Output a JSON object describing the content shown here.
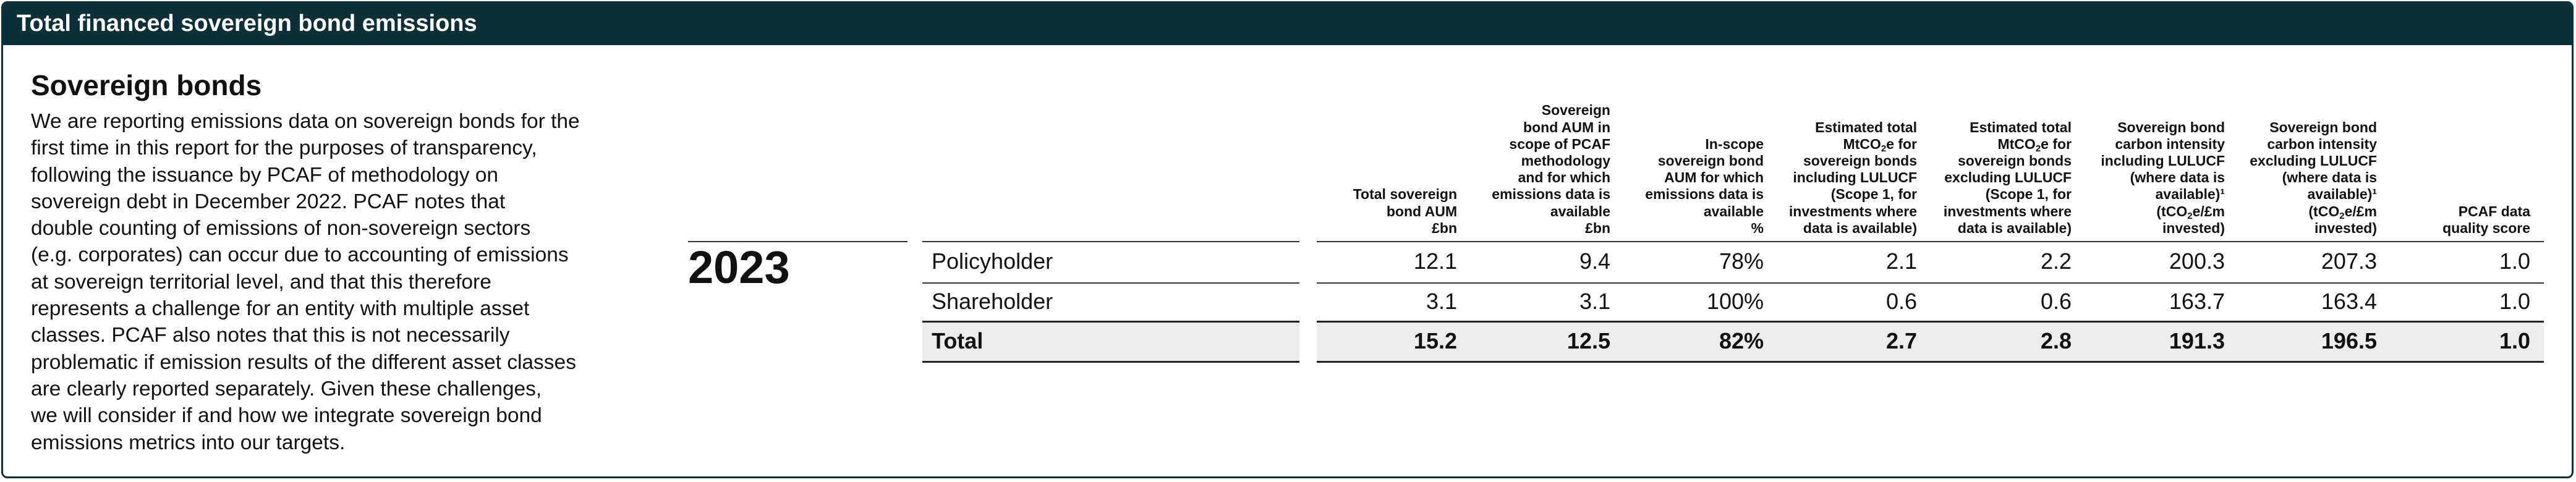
{
  "header": {
    "title": "Total financed sovereign bond emissions"
  },
  "section": {
    "heading": "Sovereign bonds",
    "paragraph_lines": [
      "We are reporting emissions data on sovereign bonds for the",
      "first time in this report for the purposes of transparency,",
      "following the issuance by PCAF of methodology on",
      "sovereign debt in December 2022. PCAF notes that",
      "double counting of emissions of non-sovereign sectors",
      "(e.g. corporates) can occur due to accounting of emissions",
      "at sovereign territorial level, and that this therefore",
      "represents a challenge for an entity with multiple asset",
      "classes. PCAF also notes that this is not necessarily",
      "problematic if emission results of the different asset classes",
      "are clearly reported separately. Given these challenges,",
      "we will consider if and how we integrate sovereign bond",
      "emissions metrics into our targets."
    ]
  },
  "table": {
    "year": "2023",
    "columns": [
      {
        "lines": [
          "Total sovereign",
          "bond AUM",
          "£bn"
        ]
      },
      {
        "lines": [
          "Sovereign",
          "bond AUM in",
          "scope of PCAF",
          "methodology",
          "and for which",
          "emissions data is",
          "available",
          "£bn"
        ]
      },
      {
        "lines": [
          "In-scope",
          "sovereign bond",
          "AUM for which",
          "emissions data is",
          "available",
          "%"
        ]
      },
      {
        "lines": [
          "Estimated total",
          "MtCO₂e for",
          "sovereign bonds",
          "including LULUCF",
          "(Scope 1, for",
          "investments where",
          "data is available)"
        ]
      },
      {
        "lines": [
          "Estimated total",
          "MtCO₂e for",
          "sovereign bonds",
          "excluding LULUCF",
          "(Scope 1, for",
          "investments where",
          "data is available)"
        ]
      },
      {
        "lines": [
          "Sovereign bond",
          "carbon intensity",
          "including LULUCF",
          "(where data is",
          "available)¹",
          "(tCO₂e/£m",
          "invested)"
        ]
      },
      {
        "lines": [
          "Sovereign bond",
          "carbon intensity",
          "excluding LULUCF",
          "(where data is",
          "available)¹",
          "(tCO₂e/£m",
          "invested)"
        ]
      },
      {
        "lines": [
          "PCAF data",
          "quality score"
        ]
      }
    ],
    "rows": [
      {
        "label": "Policyholder",
        "values": [
          "12.1",
          "9.4",
          "78%",
          "2.1",
          "2.2",
          "200.3",
          "207.3",
          "1.0"
        ]
      },
      {
        "label": "Shareholder",
        "values": [
          "3.1",
          "3.1",
          "100%",
          "0.6",
          "0.6",
          "163.7",
          "163.4",
          "1.0"
        ]
      },
      {
        "label": "Total",
        "values": [
          "15.2",
          "12.5",
          "82%",
          "2.7",
          "2.8",
          "191.3",
          "196.5",
          "1.0"
        ]
      }
    ]
  }
}
